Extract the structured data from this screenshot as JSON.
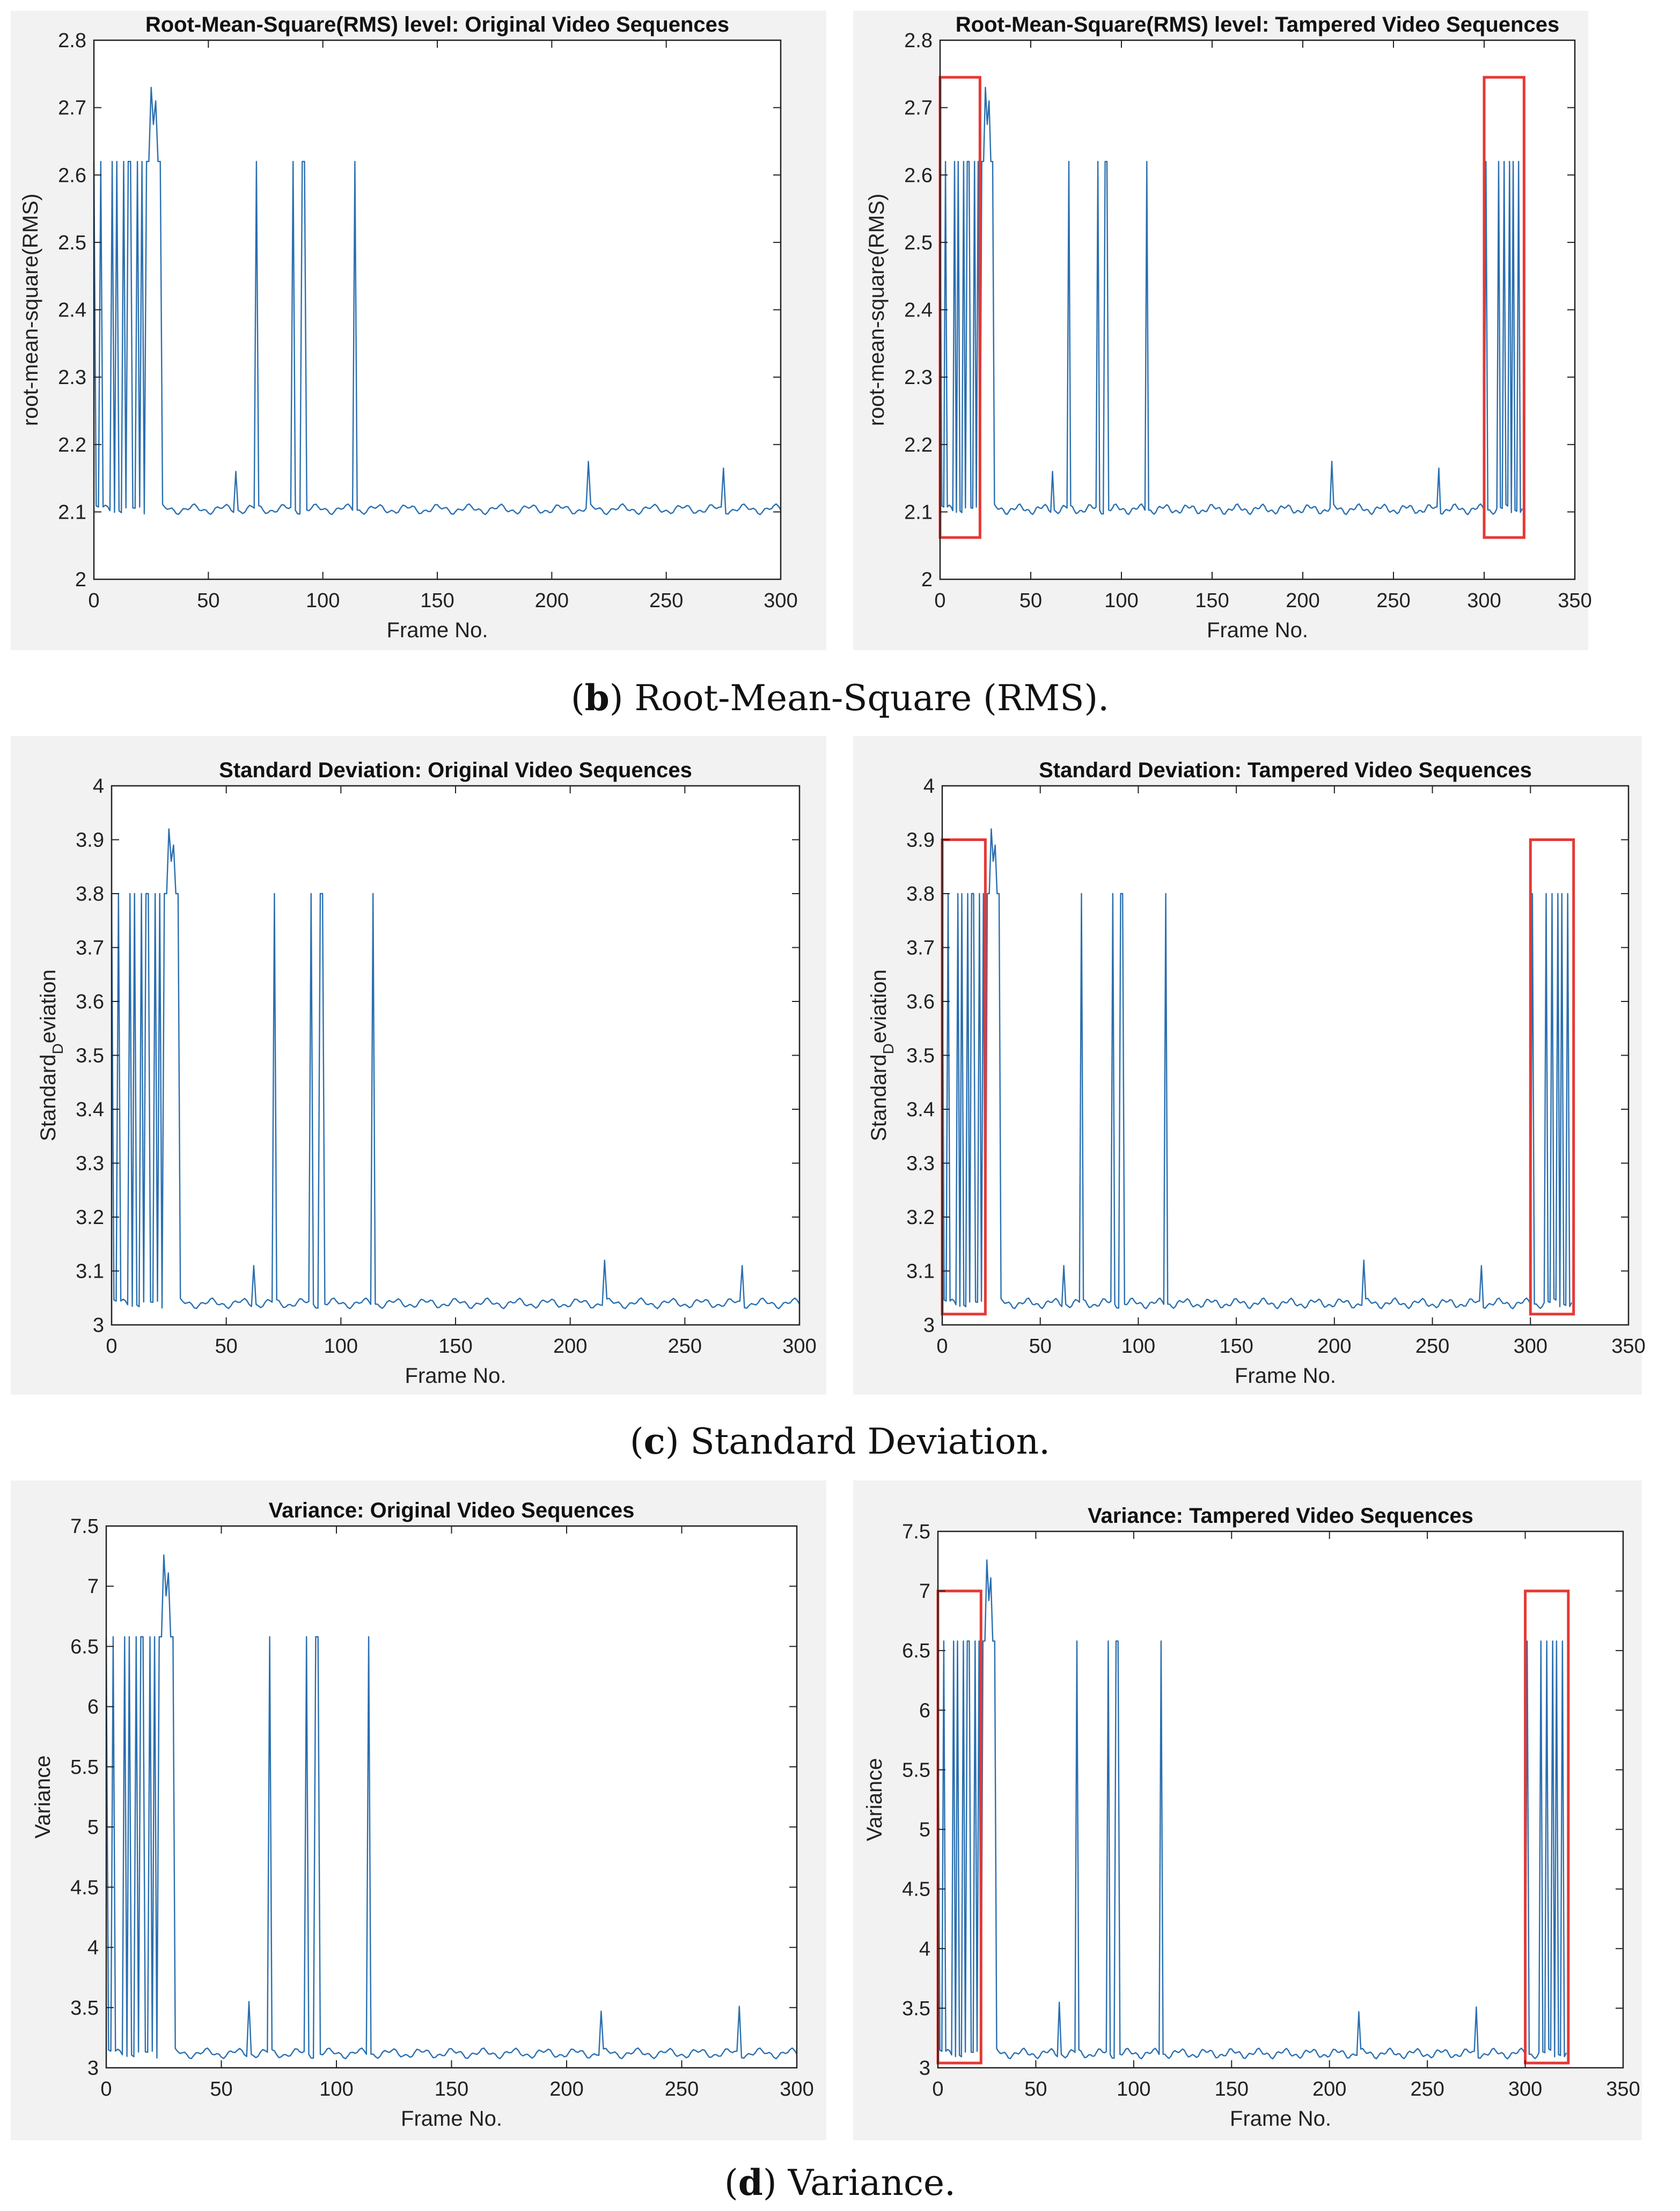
{
  "colors": {
    "line": "#2a6fb0",
    "box": "#e53935",
    "axis": "#222222",
    "panel_bg": "#f2f2f2"
  },
  "captions": [
    {
      "letter": "b",
      "text": ") Root-Mean-Square (RMS)."
    },
    {
      "letter": "c",
      "text": ") Standard Deviation."
    },
    {
      "letter": "d",
      "text": ") Variance."
    }
  ],
  "chart_data": [
    {
      "type": "line",
      "row": 0,
      "variant": "original",
      "title": "Root-Mean-Square(RMS) level: Original Video Sequences",
      "xlabel": "Frame No.",
      "ylabel": "root-mean-square(RMS)",
      "xlim": [
        0,
        300
      ],
      "ylim": [
        2,
        2.8
      ],
      "xticks": [
        0,
        50,
        100,
        150,
        200,
        250,
        300
      ],
      "yticks": [
        2,
        2.1,
        2.2,
        2.3,
        2.4,
        2.5,
        2.6,
        2.7,
        2.8
      ],
      "baseline": 2.104,
      "spike_high": 2.62,
      "bumps": [
        [
          62,
          2.16
        ],
        [
          216,
          2.175
        ],
        [
          275,
          2.165
        ]
      ],
      "peak": [
        [
          25,
          2.73
        ],
        [
          27,
          2.71
        ]
      ],
      "spikes": [
        0,
        3,
        8,
        10,
        13,
        15,
        16,
        19,
        21,
        24,
        29,
        71,
        87,
        91,
        92,
        114
      ],
      "highlight_boxes": []
    },
    {
      "type": "line",
      "row": 0,
      "variant": "tampered",
      "title": "Root-Mean-Square(RMS) level: Tampered Video Sequences",
      "xlabel": "Frame No.",
      "ylabel": "root-mean-square(RMS)",
      "xlim": [
        0,
        350
      ],
      "ylim": [
        2,
        2.8
      ],
      "xticks": [
        0,
        50,
        100,
        150,
        200,
        250,
        300,
        350
      ],
      "yticks": [
        2,
        2.1,
        2.2,
        2.3,
        2.4,
        2.5,
        2.6,
        2.7,
        2.8
      ],
      "baseline": 2.104,
      "spike_high": 2.62,
      "bumps": [
        [
          62,
          2.16
        ],
        [
          216,
          2.175
        ],
        [
          275,
          2.165
        ]
      ],
      "peak": [
        [
          25,
          2.73
        ],
        [
          27,
          2.71
        ]
      ],
      "spikes": [
        0,
        3,
        8,
        10,
        13,
        15,
        16,
        19,
        21,
        24,
        29,
        71,
        87,
        91,
        92,
        114,
        301,
        308,
        311,
        314,
        316,
        319
      ],
      "highlight_boxes": [
        {
          "x0": 0,
          "x1": 22,
          "y0": 2.062,
          "y1": 2.745
        },
        {
          "x0": 300,
          "x1": 322,
          "y0": 2.062,
          "y1": 2.745
        }
      ]
    },
    {
      "type": "line",
      "row": 1,
      "variant": "original",
      "title": "Standard Deviation: Original Video Sequences",
      "xlabel": "Frame No.",
      "ylabel": "Standard_Deviation",
      "xlim": [
        0,
        300
      ],
      "ylim": [
        3,
        4
      ],
      "xticks": [
        0,
        50,
        100,
        150,
        200,
        250,
        300
      ],
      "yticks": [
        3,
        3.1,
        3.2,
        3.3,
        3.4,
        3.5,
        3.6,
        3.7,
        3.8,
        3.9,
        4
      ],
      "baseline": 3.04,
      "spike_high": 3.8,
      "bumps": [
        [
          62,
          3.11
        ],
        [
          215,
          3.12
        ],
        [
          275,
          3.11
        ]
      ],
      "peak": [
        [
          25,
          3.92
        ],
        [
          27,
          3.89
        ]
      ],
      "spikes": [
        0,
        3,
        8,
        10,
        13,
        15,
        16,
        19,
        21,
        24,
        29,
        71,
        87,
        91,
        92,
        114
      ],
      "highlight_boxes": []
    },
    {
      "type": "line",
      "row": 1,
      "variant": "tampered",
      "title": "Standard Deviation: Tampered Video Sequences",
      "xlabel": "Frame No.",
      "ylabel": "Standard_Deviation",
      "xlim": [
        0,
        350
      ],
      "ylim": [
        3,
        4
      ],
      "xticks": [
        0,
        50,
        100,
        150,
        200,
        250,
        300,
        350
      ],
      "yticks": [
        3,
        3.1,
        3.2,
        3.3,
        3.4,
        3.5,
        3.6,
        3.7,
        3.8,
        3.9,
        4
      ],
      "baseline": 3.04,
      "spike_high": 3.8,
      "bumps": [
        [
          62,
          3.11
        ],
        [
          215,
          3.12
        ],
        [
          275,
          3.11
        ]
      ],
      "peak": [
        [
          25,
          3.92
        ],
        [
          27,
          3.89
        ]
      ],
      "spikes": [
        0,
        3,
        8,
        10,
        13,
        15,
        16,
        19,
        21,
        24,
        29,
        71,
        87,
        91,
        92,
        114,
        301,
        308,
        311,
        314,
        316,
        319
      ],
      "highlight_boxes": [
        {
          "x0": 0,
          "x1": 22,
          "y0": 3.02,
          "y1": 3.9
        },
        {
          "x0": 300,
          "x1": 322,
          "y0": 3.02,
          "y1": 3.9
        }
      ]
    },
    {
      "type": "line",
      "row": 2,
      "variant": "original",
      "title": "Variance: Original Video Sequences",
      "xlabel": "Frame No.",
      "ylabel": "Variance",
      "xlim": [
        0,
        300
      ],
      "ylim": [
        3,
        7.5
      ],
      "xticks": [
        0,
        50,
        100,
        150,
        200,
        250,
        300
      ],
      "yticks": [
        3,
        3.5,
        4,
        4.5,
        5,
        5.5,
        6,
        6.5,
        7,
        7.5
      ],
      "baseline": 3.12,
      "spike_high": 6.58,
      "bumps": [
        [
          62,
          3.55
        ],
        [
          215,
          3.47
        ],
        [
          275,
          3.51
        ]
      ],
      "peak": [
        [
          25,
          7.26
        ],
        [
          27,
          7.11
        ]
      ],
      "spikes": [
        0,
        3,
        8,
        10,
        13,
        15,
        16,
        19,
        21,
        24,
        29,
        71,
        87,
        91,
        92,
        114
      ],
      "highlight_boxes": []
    },
    {
      "type": "line",
      "row": 2,
      "variant": "tampered",
      "title": "Variance: Tampered Video Sequences",
      "xlabel": "Frame No.",
      "ylabel": "Variance",
      "xlim": [
        0,
        350
      ],
      "ylim": [
        3,
        7.5
      ],
      "xticks": [
        0,
        50,
        100,
        150,
        200,
        250,
        300,
        350
      ],
      "yticks": [
        3,
        3.5,
        4,
        4.5,
        5,
        5.5,
        6,
        6.5,
        7,
        7.5
      ],
      "baseline": 3.12,
      "spike_high": 6.58,
      "bumps": [
        [
          62,
          3.55
        ],
        [
          215,
          3.47
        ],
        [
          275,
          3.51
        ]
      ],
      "peak": [
        [
          25,
          7.26
        ],
        [
          27,
          7.11
        ]
      ],
      "spikes": [
        0,
        3,
        8,
        10,
        13,
        15,
        16,
        19,
        21,
        24,
        29,
        71,
        87,
        91,
        92,
        114,
        301,
        308,
        311,
        314,
        316,
        319
      ],
      "highlight_boxes": [
        {
          "x0": 0,
          "x1": 22,
          "y0": 3.04,
          "y1": 7.0
        },
        {
          "x0": 300,
          "x1": 322,
          "y0": 3.04,
          "y1": 7.0
        }
      ]
    }
  ]
}
